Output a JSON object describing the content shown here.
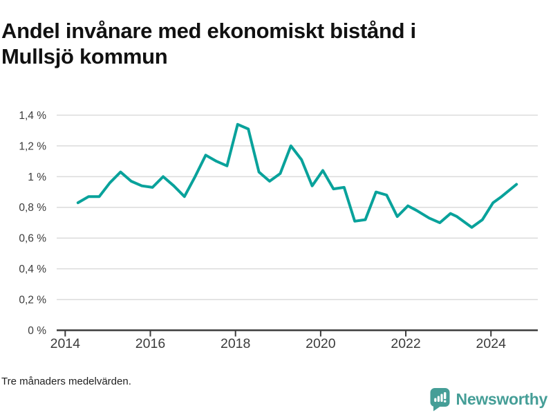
{
  "header": {
    "title_lines": [
      "Andel invånare med ekonomiskt bistånd i",
      "Mullsjö kommun"
    ]
  },
  "footer": {
    "note": "Tre månaders medelvärden.",
    "brand": {
      "name": "Newsworthy",
      "color": "#459E97",
      "icon": "newsworthy-chart-bubble-icon"
    }
  },
  "chart_data": {
    "type": "line",
    "title": "Andel invånare med ekonomiskt bistånd i Mullsjö kommun",
    "note": "Tre månaders medelvärden.",
    "line_color": "#09A29B",
    "grid_color": "#DBDBDB",
    "axis_color": "#3B3B3B",
    "label_color": "#3B3B3B",
    "grid": true,
    "legend_position": "none",
    "xlim": [
      2013.8,
      2025.1
    ],
    "ylim": [
      0,
      1.4
    ],
    "x_ticks": [
      {
        "value": 2014,
        "label": "2014"
      },
      {
        "value": 2016,
        "label": "2016"
      },
      {
        "value": 2018,
        "label": "2018"
      },
      {
        "value": 2020,
        "label": "2020"
      },
      {
        "value": 2022,
        "label": "2022"
      },
      {
        "value": 2024,
        "label": "2024"
      }
    ],
    "y_ticks": [
      {
        "value": 0,
        "label": "0 %"
      },
      {
        "value": 0.2,
        "label": "0,2 %"
      },
      {
        "value": 0.4,
        "label": "0,4 %"
      },
      {
        "value": 0.6,
        "label": "0,6 %"
      },
      {
        "value": 0.8,
        "label": "0,8 %"
      },
      {
        "value": 1,
        "label": "1 %"
      },
      {
        "value": 1.2,
        "label": "1,2 %"
      },
      {
        "value": 1.4,
        "label": "1,4 %"
      }
    ],
    "series": [
      {
        "points": [
          [
            2014.3,
            0.83
          ],
          [
            2014.55,
            0.87
          ],
          [
            2014.8,
            0.87
          ],
          [
            2015.05,
            0.96
          ],
          [
            2015.3,
            1.03
          ],
          [
            2015.55,
            0.97
          ],
          [
            2015.8,
            0.94
          ],
          [
            2016.05,
            0.93
          ],
          [
            2016.3,
            1.0
          ],
          [
            2016.55,
            0.94
          ],
          [
            2016.8,
            0.87
          ],
          [
            2017.05,
            1.0
          ],
          [
            2017.3,
            1.14
          ],
          [
            2017.55,
            1.1
          ],
          [
            2017.8,
            1.07
          ],
          [
            2018.05,
            1.34
          ],
          [
            2018.3,
            1.31
          ],
          [
            2018.55,
            1.03
          ],
          [
            2018.8,
            0.97
          ],
          [
            2019.05,
            1.02
          ],
          [
            2019.3,
            1.2
          ],
          [
            2019.55,
            1.11
          ],
          [
            2019.8,
            0.94
          ],
          [
            2020.05,
            1.04
          ],
          [
            2020.3,
            0.92
          ],
          [
            2020.55,
            0.93
          ],
          [
            2020.8,
            0.71
          ],
          [
            2021.05,
            0.72
          ],
          [
            2021.3,
            0.9
          ],
          [
            2021.55,
            0.88
          ],
          [
            2021.8,
            0.74
          ],
          [
            2022.05,
            0.81
          ],
          [
            2022.25,
            0.78
          ],
          [
            2022.55,
            0.73
          ],
          [
            2022.8,
            0.7
          ],
          [
            2023.05,
            0.76
          ],
          [
            2023.2,
            0.74
          ],
          [
            2023.55,
            0.67
          ],
          [
            2023.8,
            0.72
          ],
          [
            2024.05,
            0.83
          ],
          [
            2024.25,
            0.87
          ],
          [
            2024.6,
            0.95
          ]
        ]
      }
    ]
  }
}
